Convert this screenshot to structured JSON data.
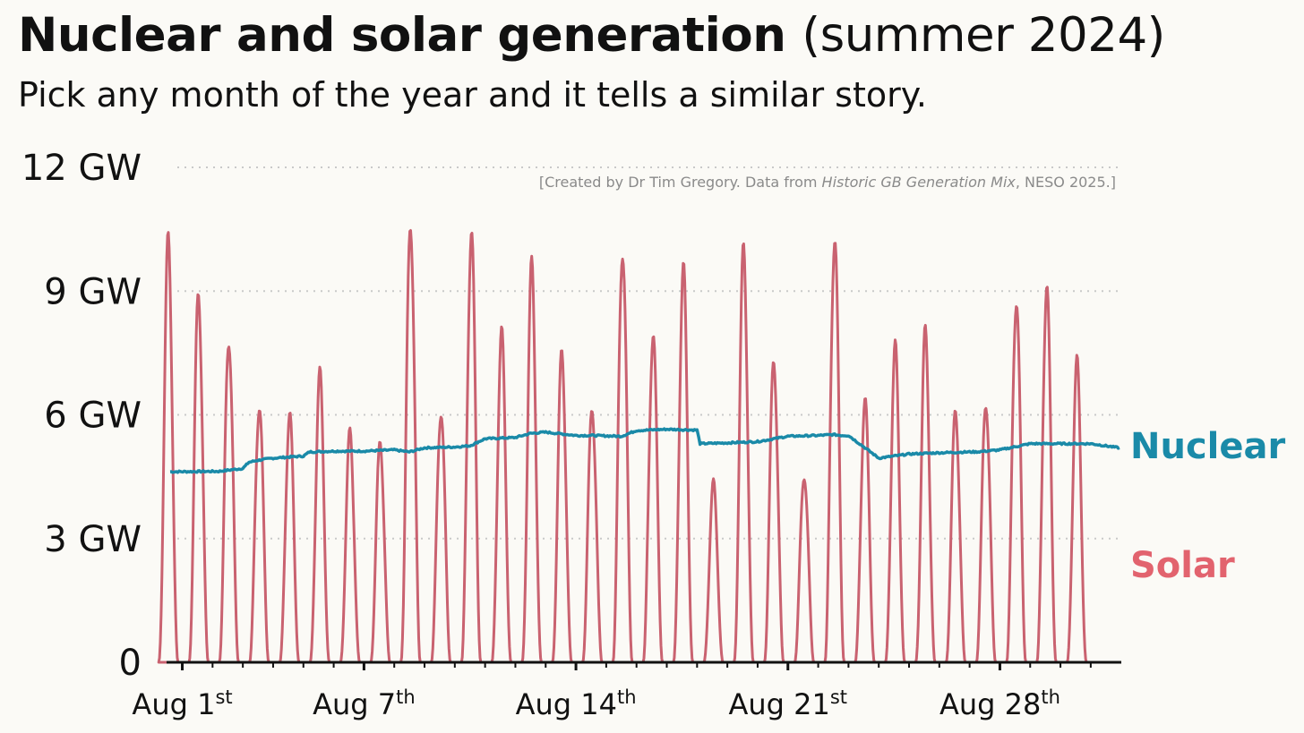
{
  "title": {
    "bold": "Nuclear and solar generation",
    "light": "(summer 2024)"
  },
  "subtitle": "Pick any month of the year and it tells a similar story.",
  "credit": {
    "before": "[Created by Dr Tim Gregory. Data from ",
    "italic": "Historic GB Generation Mix",
    "after": ", NESO 2025.]"
  },
  "chart_data": {
    "type": "line",
    "xlabel": "",
    "ylabel": "",
    "ylim": [
      0,
      12
    ],
    "x_range_days": [
      0.6,
      31.95
    ],
    "yticks": [
      {
        "value": 0,
        "label": "0"
      },
      {
        "value": 3,
        "label": "3 GW"
      },
      {
        "value": 6,
        "label": "6 GW"
      },
      {
        "value": 9,
        "label": "9 GW"
      },
      {
        "value": 12,
        "label": "12 GW"
      }
    ],
    "xticks": [
      {
        "day": 1,
        "main": "Aug 1",
        "sup": "st"
      },
      {
        "day": 7,
        "main": "Aug 7",
        "sup": "th"
      },
      {
        "day": 14,
        "main": "Aug 14",
        "sup": "th"
      },
      {
        "day": 21,
        "main": "Aug 21",
        "sup": "st"
      },
      {
        "day": 28,
        "main": "Aug 28",
        "sup": "th"
      }
    ],
    "grid": "horizontal-dotted",
    "series": [
      {
        "name": "Nuclear",
        "color": "#1a8aa8",
        "x": [
          0.6,
          2.2,
          3.0,
          3.2,
          3.5,
          4.0,
          5.0,
          5.2,
          6.0,
          7.0,
          8.0,
          8.5,
          9.0,
          10.0,
          10.5,
          11.0,
          12.0,
          12.5,
          13.0,
          14.0,
          14.5,
          15.5,
          16.0,
          17.0,
          18.0,
          18.1,
          19.0,
          20.0,
          21.0,
          22.0,
          22.5,
          22.8,
          23.0,
          24.0,
          25.0,
          26.0,
          27.0,
          27.2,
          28.0,
          29.0,
          30.0,
          31.0,
          31.95
        ],
        "values": [
          4.62,
          4.63,
          4.7,
          4.85,
          4.9,
          4.95,
          5.0,
          5.1,
          5.12,
          5.12,
          5.15,
          5.1,
          5.2,
          5.22,
          5.25,
          5.42,
          5.45,
          5.55,
          5.58,
          5.5,
          5.5,
          5.48,
          5.62,
          5.65,
          5.63,
          5.3,
          5.32,
          5.35,
          5.48,
          5.5,
          5.52,
          5.5,
          5.5,
          4.95,
          5.05,
          5.08,
          5.1,
          5.1,
          5.15,
          5.3,
          5.3,
          5.3,
          5.2
        ]
      },
      {
        "name": "Solar",
        "color": "#c96270",
        "daily_peak_day": [
          1,
          2,
          3,
          4,
          5,
          6,
          7,
          8,
          9,
          10,
          11,
          12,
          13,
          14,
          15,
          16,
          17,
          18,
          19,
          20,
          21,
          22,
          23,
          24,
          25,
          26,
          27,
          28,
          29,
          30,
          31
        ],
        "daily_peak_gw": [
          10.0,
          9.0,
          8.1,
          6.4,
          6.0,
          6.8,
          5.4,
          5.3,
          11.0,
          6.3,
          10.5,
          7.8,
          9.3,
          7.4,
          6.3,
          10.4,
          8.1,
          9.4,
          4.2,
          9.8,
          7.4,
          4.7,
          10.6,
          6.3,
          7.4,
          7.8,
          6.1,
          6.5,
          9.1,
          9.1,
          7.1
        ],
        "night_value": 0
      }
    ]
  },
  "labels": {
    "nuclear": "Nuclear",
    "solar": "Solar"
  }
}
